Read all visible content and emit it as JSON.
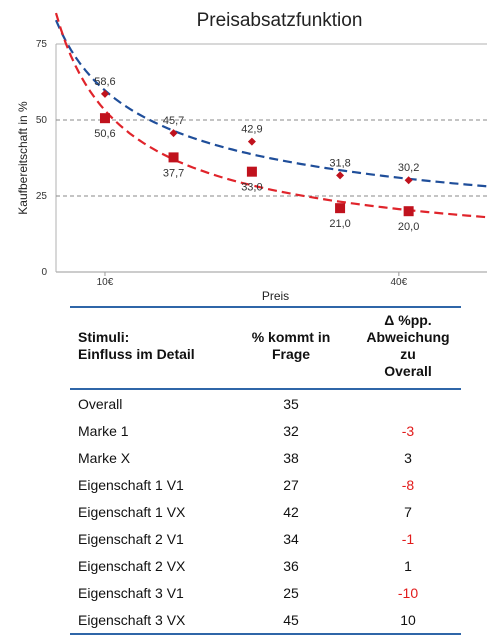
{
  "chart_data": {
    "type": "scatter",
    "title": "Preisabsatzfunktion",
    "xlabel": "Preis",
    "ylabel": "Kaufbereitschaft in %",
    "ylim": [
      0,
      75
    ],
    "yticks": [
      "0",
      "25",
      "50",
      "75"
    ],
    "xticks": [
      {
        "x": 10,
        "label": "10€"
      },
      {
        "x": 40,
        "label": "40€"
      }
    ],
    "xlim": [
      5,
      49
    ],
    "grid": "horizontal dashed at 25 and 50",
    "series": [
      {
        "color": "#c0121d",
        "marker": "diamond",
        "line": "#1f4e9a",
        "points": [
          {
            "x": 10,
            "y": 58.6,
            "label": "58,6"
          },
          {
            "x": 17,
            "y": 45.7,
            "label": "45,7"
          },
          {
            "x": 25,
            "y": 42.9,
            "label": "42,9"
          },
          {
            "x": 34,
            "y": 31.8,
            "label": "31,8"
          },
          {
            "x": 41,
            "y": 30.2,
            "label": "30,2"
          }
        ]
      },
      {
        "color": "#c0121d",
        "marker": "square",
        "line": "#e0242b",
        "points": [
          {
            "x": 10,
            "y": 50.6,
            "label": "50,6"
          },
          {
            "x": 17,
            "y": 37.7,
            "label": "37,7"
          },
          {
            "x": 25,
            "y": 33.0,
            "label": "33,0"
          },
          {
            "x": 34,
            "y": 21.0,
            "label": "21,0"
          },
          {
            "x": 41,
            "y": 20.0,
            "label": "20,0"
          }
        ]
      }
    ]
  },
  "table": {
    "headers": [
      "Stimuli:\nEinfluss im Detail",
      "% kommt in\nFrage",
      "Δ %pp.\nAbweichung zu\nOverall"
    ],
    "rows": [
      {
        "name": "Overall",
        "pct": "35",
        "delta": ""
      },
      {
        "name": "Marke 1",
        "pct": "32",
        "delta": "-3"
      },
      {
        "name": "Marke X",
        "pct": "38",
        "delta": "3"
      },
      {
        "name": "Eigenschaft 1 V1",
        "pct": "27",
        "delta": "-8"
      },
      {
        "name": "Eigenschaft 1 VX",
        "pct": "42",
        "delta": "7"
      },
      {
        "name": "Eigenschaft 2 V1",
        "pct": "34",
        "delta": "-1"
      },
      {
        "name": "Eigenschaft 2 VX",
        "pct": "36",
        "delta": "1"
      },
      {
        "name": "Eigenschaft 3 V1",
        "pct": "25",
        "delta": "-10"
      },
      {
        "name": "Eigenschaft 3 VX",
        "pct": "45",
        "delta": "10"
      }
    ],
    "negative_color": "#e21b1b",
    "rule_color": "#2f66a8"
  }
}
